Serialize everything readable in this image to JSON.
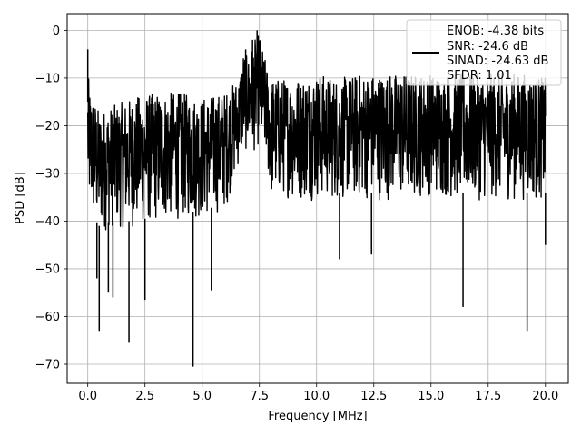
{
  "chart_data": {
    "type": "line",
    "title": "",
    "xlabel": "Frequency [MHz]",
    "ylabel": "PSD [dB]",
    "xlim": [
      -0.9,
      21.0
    ],
    "ylim": [
      -74,
      3.5
    ],
    "xticks": [
      0.0,
      2.5,
      5.0,
      7.5,
      10.0,
      12.5,
      15.0,
      17.5,
      20.0
    ],
    "xtick_labels": [
      "0.0",
      "2.5",
      "5.0",
      "7.5",
      "10.0",
      "12.5",
      "15.0",
      "17.5",
      "20.0"
    ],
    "yticks": [
      0,
      -10,
      -20,
      -30,
      -40,
      -50,
      -60,
      -70
    ],
    "ytick_labels": [
      "0",
      "−10",
      "−20",
      "−30",
      "−40",
      "−50",
      "−60",
      "−70"
    ],
    "grid": true,
    "legend_position": "top-right",
    "legend_lines": [
      "ENOB: -4.38 bits",
      "SNR: -24.6 dB",
      "SINAD: -24.63 dB",
      "SFDR: 1.01"
    ],
    "series": [
      {
        "color": "#000000",
        "envelope_x": [
          0.0,
          0.1,
          0.5,
          1.0,
          2.0,
          3.0,
          4.0,
          5.0,
          6.0,
          6.6,
          6.8,
          7.0,
          7.2,
          7.4,
          7.5,
          7.6,
          7.8,
          8.0,
          8.5,
          9.0,
          10.0,
          11.0,
          12.0,
          13.0,
          14.0,
          15.0,
          16.0,
          17.0,
          18.0,
          19.0,
          20.0
        ],
        "envelope_upper": [
          -9,
          -12,
          -17,
          -16,
          -14,
          -13,
          -13,
          -14,
          -13,
          -10,
          -4,
          -6,
          -3,
          -1,
          0,
          -3,
          -7,
          -10,
          -10,
          -10,
          -9,
          -10,
          -9,
          -9,
          -9,
          -9,
          -9,
          -9,
          -9,
          -9,
          -10
        ],
        "envelope_lower": [
          -40,
          -42,
          -45,
          -44,
          -44,
          -43,
          -42,
          -42,
          -40,
          -30,
          -28,
          -27,
          -28,
          -27,
          -26,
          -28,
          -30,
          -38,
          -37,
          -38,
          -38,
          -38,
          -38,
          -38,
          -38,
          -37,
          -38,
          -38,
          -38,
          -38,
          -38
        ],
        "dips": [
          [
            0.4,
            -52
          ],
          [
            0.5,
            -63
          ],
          [
            0.9,
            -55
          ],
          [
            1.1,
            -56
          ],
          [
            1.8,
            -65.5
          ],
          [
            2.5,
            -56.5
          ],
          [
            4.6,
            -70.5
          ],
          [
            5.4,
            -54.5
          ],
          [
            11.0,
            -48
          ],
          [
            12.4,
            -47
          ],
          [
            16.4,
            -58
          ],
          [
            19.2,
            -63
          ],
          [
            20.0,
            -45
          ]
        ],
        "peaks": [
          [
            0.0,
            -4
          ],
          [
            7.4,
            0
          ],
          [
            7.2,
            -2
          ],
          [
            6.9,
            -4
          ]
        ]
      }
    ]
  }
}
